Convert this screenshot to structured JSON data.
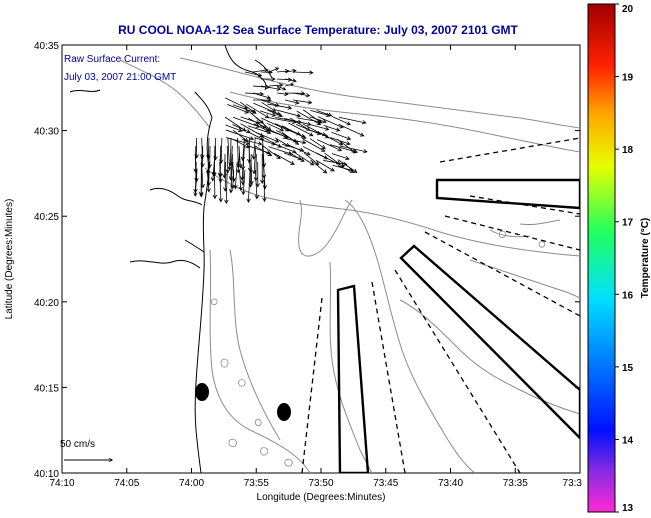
{
  "title": "RU COOL  NOAA-12  Sea Surface Temperature:  July 03, 2007 2101 GMT",
  "annotation": {
    "line1": "Raw Surface Current:",
    "line2": "July 03, 2007 21:00 GMT"
  },
  "scale_label": "50 cm/s",
  "colorbar": {
    "label": "Temperature (°C)",
    "ticks": [
      "13",
      "14",
      "15",
      "16",
      "17",
      "18",
      "19",
      "20"
    ],
    "min": 13,
    "max": 20
  },
  "chart_data": {
    "type": "map",
    "xlabel": "Longitude (Degrees:Minutes)",
    "ylabel": "Latitude (Degrees:Minutes)",
    "x_ticks": [
      "74:10",
      "74:05",
      "74:00",
      "73:55",
      "73:50",
      "73:45",
      "73:40",
      "73:35",
      "73:3"
    ],
    "y_ticks": [
      "40:10",
      "40:15",
      "40:20",
      "40:25",
      "40:30",
      "40:35"
    ],
    "xlim": [
      "74:10",
      "73:30"
    ],
    "ylim": [
      "40:10",
      "40:35"
    ]
  }
}
